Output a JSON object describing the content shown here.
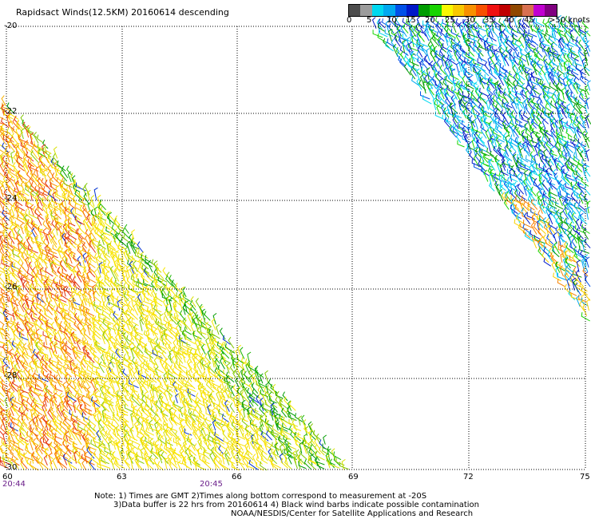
{
  "title": "Rapidsact Winds(12.5KM) 20160614 descending",
  "legend": {
    "colors": [
      "#4d4d4d",
      "#9c9c9c",
      "#00d8f0",
      "#00a8f0",
      "#0050e8",
      "#0018c8",
      "#009c00",
      "#18d400",
      "#f8f800",
      "#f8c800",
      "#f89000",
      "#f85000",
      "#f01010",
      "#c00000",
      "#904800",
      "#d87050",
      "#c000d0",
      "#800080"
    ],
    "labels": [
      "0",
      "5",
      "10",
      "15",
      "20",
      "25",
      "30",
      "35",
      "40",
      "45",
      ">50 knots"
    ]
  },
  "axes": {
    "lat_labels": [
      "-20",
      "-22",
      "-24",
      "-26",
      "-28",
      "-30"
    ],
    "lon_labels": [
      "60",
      "63",
      "66",
      "69",
      "72",
      "75"
    ]
  },
  "times": [
    "20:44",
    "20:45"
  ],
  "notes": {
    "line1": "Note: 1) Times are GMT 2)Times along bottom correspond to measurement at -20S",
    "line2": "3)Data buffer is 22 hrs from 20160614 4) Black wind barbs indicate possible contamination",
    "line3": "NOAA/NESDIS/Center for Satellite Applications and Research"
  }
}
